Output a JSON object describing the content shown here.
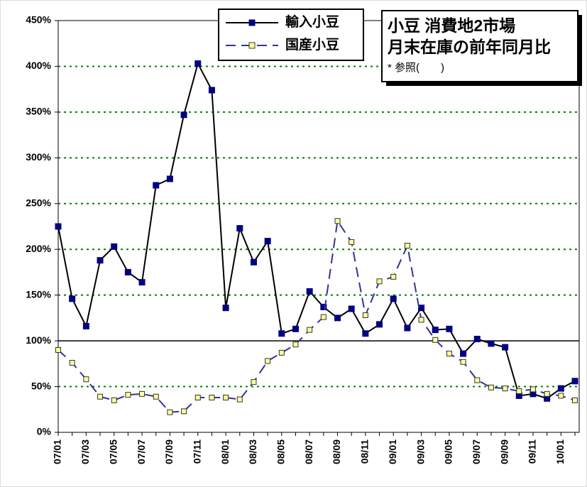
{
  "chart_data": {
    "type": "line",
    "title": "小豆 消費地2市場",
    "subtitle": "月末在庫の前年同月比",
    "annotation": "* 参照(　　)",
    "categories": [
      "07/01",
      null,
      "07/03",
      null,
      "07/05",
      null,
      "07/07",
      null,
      "07/09",
      null,
      "07/11",
      null,
      "08/01",
      null,
      "08/03",
      null,
      "08/05",
      null,
      "08/07",
      null,
      "08/09",
      null,
      "08/11",
      null,
      "09/01",
      null,
      "09/03",
      null,
      "09/05",
      null,
      "09/07",
      null,
      "09/09",
      null,
      "09/11",
      null,
      "10/01",
      null
    ],
    "series": [
      {
        "name": "輸入小豆",
        "color": "#000000",
        "marker_color": "#000080",
        "dash": false,
        "values": [
          225,
          146,
          116,
          188,
          203,
          175,
          164,
          270,
          277,
          347,
          403,
          374,
          136,
          223,
          186,
          209,
          108,
          113,
          154,
          137,
          125,
          135,
          108,
          118,
          146,
          114,
          136,
          112,
          113,
          86,
          102,
          97,
          93,
          40,
          42,
          37,
          48,
          56
        ]
      },
      {
        "name": "国産小豆",
        "color": "#333399",
        "marker_color": "#ffff99",
        "dash": true,
        "values": [
          90,
          76,
          58,
          39,
          35,
          41,
          42,
          39,
          22,
          23,
          38,
          38,
          38,
          36,
          55,
          78,
          87,
          96,
          112,
          126,
          231,
          208,
          128,
          165,
          170,
          204,
          123,
          101,
          86,
          77,
          57,
          49,
          48,
          45,
          47,
          42,
          40,
          35
        ]
      }
    ],
    "ylim": [
      0,
      450
    ],
    "yticks": [
      {
        "value": 0,
        "label": "0%"
      },
      {
        "value": 50,
        "label": "50%"
      },
      {
        "value": 100,
        "label": "100%"
      },
      {
        "value": 150,
        "label": "150%"
      },
      {
        "value": 200,
        "label": "200%"
      },
      {
        "value": 250,
        "label": "250%"
      },
      {
        "value": 300,
        "label": "300%"
      },
      {
        "value": 350,
        "label": "350%"
      },
      {
        "value": 400,
        "label": "400%"
      },
      {
        "value": 450,
        "label": "450%"
      }
    ],
    "hline": 100,
    "grid": true
  }
}
